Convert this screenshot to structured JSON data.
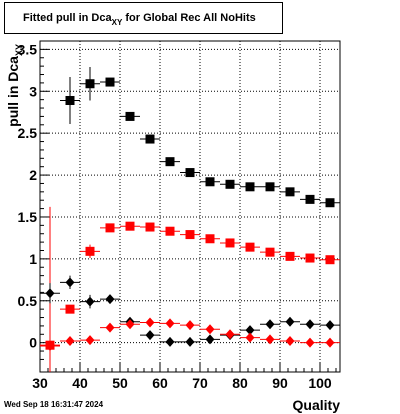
{
  "chart_data": {
    "type": "scatter",
    "title": "Fitted pull in Dca",
    "title_subscript": "XY",
    "title_suffix": " for Global Rec All NoHits",
    "xlabel": "Quality",
    "ylabel": "pull in Dca",
    "ylabel_subscript": "XY",
    "xlim": [
      30,
      105
    ],
    "ylim": [
      -0.35,
      3.6
    ],
    "xticks": [
      30,
      40,
      50,
      60,
      70,
      80,
      90,
      100
    ],
    "yticks": [
      0,
      0.5,
      1,
      1.5,
      2,
      2.5,
      3,
      3.5
    ],
    "grid": true,
    "series": [
      {
        "marker": "square",
        "color": "#000000",
        "x": [
          37.5,
          42.5,
          47.5,
          52.5,
          57.5,
          62.5,
          67.5,
          72.5,
          77.5,
          82.5,
          87.5,
          92.5,
          97.5,
          102.5
        ],
        "y": [
          2.89,
          3.09,
          3.11,
          2.7,
          2.43,
          2.16,
          2.03,
          1.92,
          1.89,
          1.86,
          1.86,
          1.8,
          1.71,
          1.67
        ],
        "err": [
          0.28,
          0.2,
          0.04,
          0.02,
          0.02,
          0.02,
          0.02,
          0.02,
          0.02,
          0.02,
          0.02,
          0.02,
          0.02,
          0.02
        ]
      },
      {
        "marker": "square",
        "color": "#ff0000",
        "x": [
          32.5,
          37.5,
          42.5,
          47.5,
          52.5,
          57.5,
          62.5,
          67.5,
          72.5,
          77.5,
          82.5,
          87.5,
          92.5,
          97.5,
          102.5
        ],
        "y": [
          -0.03,
          0.4,
          1.09,
          1.37,
          1.39,
          1.38,
          1.33,
          1.29,
          1.24,
          1.19,
          1.14,
          1.08,
          1.03,
          1.01,
          0.99
        ],
        "err": [
          1.65,
          0.03,
          0.08,
          0.02,
          0.02,
          0.02,
          0.02,
          0.02,
          0.02,
          0.02,
          0.02,
          0.02,
          0.02,
          0.02,
          0.02
        ]
      },
      {
        "marker": "diamond",
        "color": "#000000",
        "x": [
          32.5,
          37.5,
          42.5,
          47.5,
          52.5,
          57.5,
          62.5,
          67.5,
          72.5,
          77.5,
          82.5,
          87.5,
          92.5,
          97.5,
          102.5
        ],
        "y": [
          0.59,
          0.72,
          0.49,
          0.52,
          0.25,
          0.09,
          0.01,
          0.01,
          0.04,
          0.09,
          0.15,
          0.22,
          0.25,
          0.22,
          0.21
        ],
        "err": [
          0.12,
          0.08,
          0.08,
          0.03,
          0.02,
          0.02,
          0.02,
          0.02,
          0.02,
          0.02,
          0.02,
          0.02,
          0.02,
          0.02,
          0.02
        ]
      },
      {
        "marker": "diamond",
        "color": "#ff0000",
        "x": [
          32.5,
          37.5,
          42.5,
          47.5,
          52.5,
          57.5,
          62.5,
          67.5,
          72.5,
          77.5,
          82.5,
          87.5,
          92.5,
          97.5,
          102.5
        ],
        "y": [
          -0.04,
          0.02,
          0.03,
          0.18,
          0.22,
          0.24,
          0.23,
          0.21,
          0.16,
          0.1,
          0.06,
          0.04,
          0.02,
          0.0,
          0.0
        ],
        "err": [
          0.02,
          0.02,
          0.02,
          0.02,
          0.02,
          0.02,
          0.02,
          0.02,
          0.02,
          0.02,
          0.02,
          0.02,
          0.02,
          0.02,
          0.02
        ]
      }
    ]
  },
  "footer": "Wed Sep 18 16:31:47 2024"
}
